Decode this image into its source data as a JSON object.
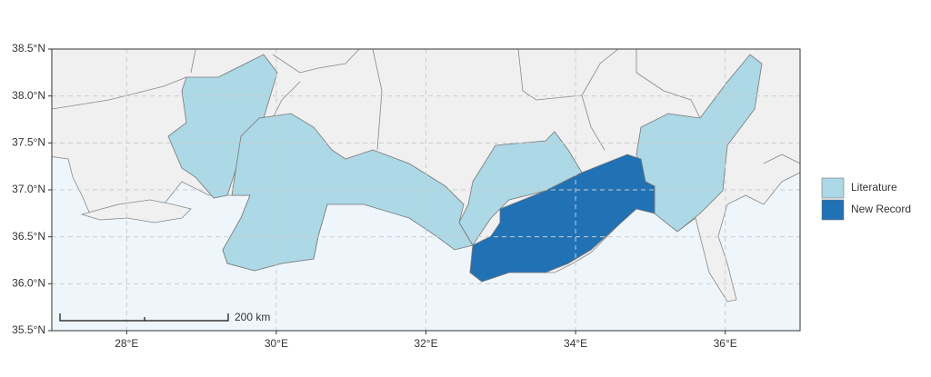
{
  "map": {
    "xlim": [
      27,
      37
    ],
    "ylim": [
      35.5,
      38.5
    ],
    "xticks": [
      {
        "value": 28,
        "label": "28°E"
      },
      {
        "value": 30,
        "label": "30°E"
      },
      {
        "value": 32,
        "label": "32°E"
      },
      {
        "value": 34,
        "label": "34°E"
      },
      {
        "value": 36,
        "label": "36°E"
      }
    ],
    "yticks": [
      {
        "value": 35.5,
        "label": "35.5°N"
      },
      {
        "value": 36,
        "label": "36.0°N"
      },
      {
        "value": 36.5,
        "label": "36.5°N"
      },
      {
        "value": 37,
        "label": "37.0°N"
      },
      {
        "value": 37.5,
        "label": "37.5°N"
      },
      {
        "value": 38,
        "label": "38.0°N"
      },
      {
        "value": 38.5,
        "label": "38.5°N"
      }
    ],
    "grid": true,
    "legend": [
      {
        "name": "Literature",
        "color": "#add8e6"
      },
      {
        "name": "New Record",
        "color": "#2171b5"
      }
    ],
    "scale_bar": {
      "label": "200 km"
    }
  }
}
